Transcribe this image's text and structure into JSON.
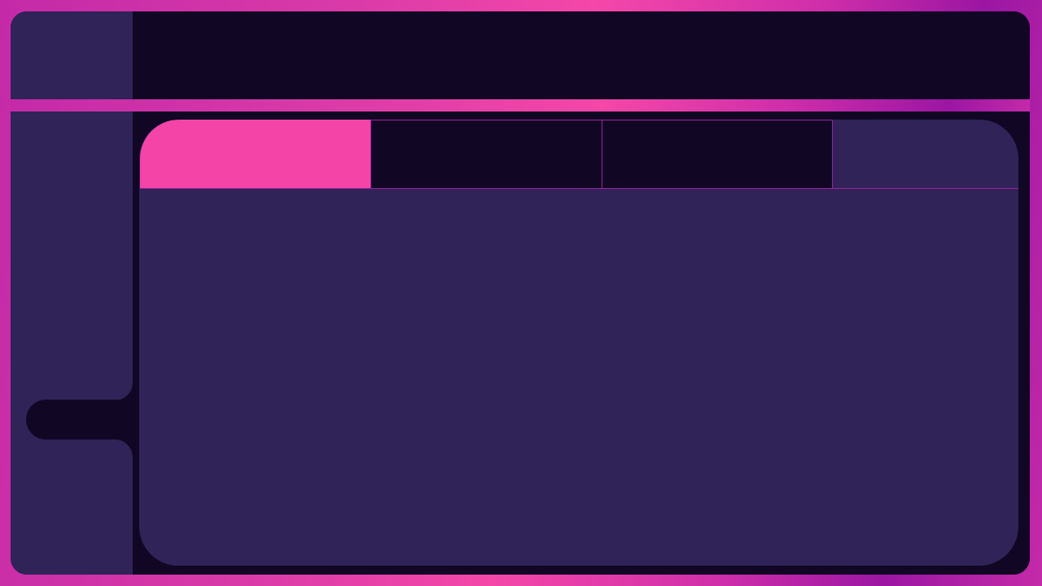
{
  "colors": {
    "background_magenta": "#f447a8",
    "window_dark": "#110725",
    "surface_purple": "#302358",
    "tab_active": "#f444a8",
    "tab_border": "#a21f9c"
  },
  "tabs": [
    {
      "label": "",
      "active": true
    },
    {
      "label": "",
      "active": false
    },
    {
      "label": "",
      "active": false
    },
    {
      "label": "",
      "active": false
    }
  ]
}
